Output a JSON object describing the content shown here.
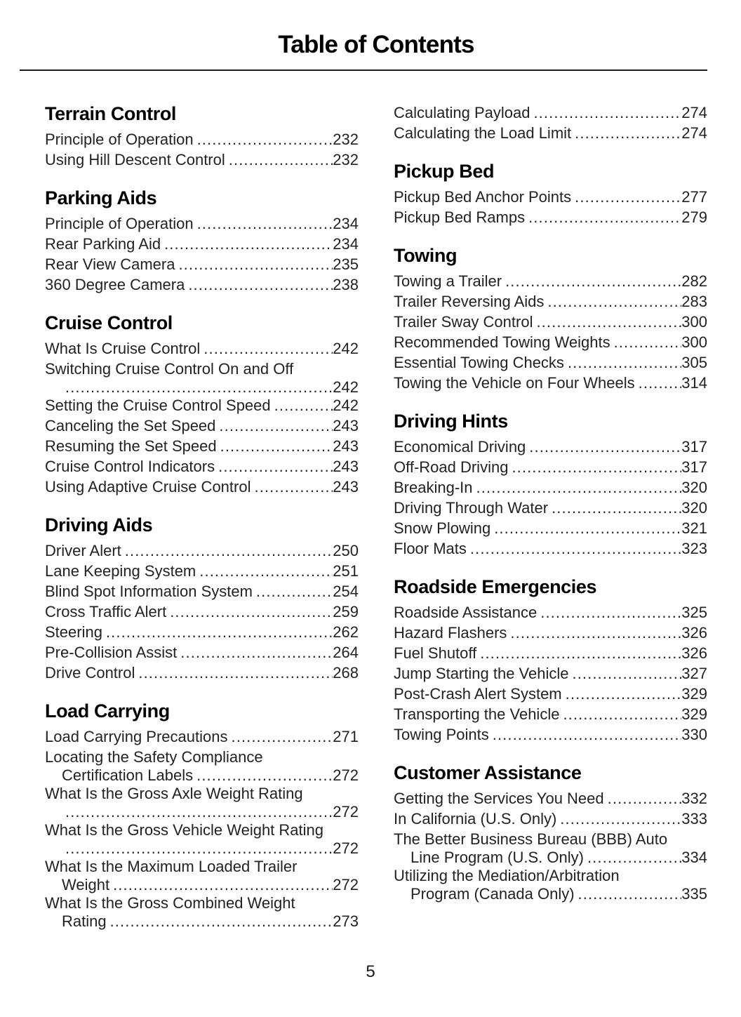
{
  "page": {
    "title": "Table of Contents",
    "page_number": "5"
  },
  "toc": {
    "columns": [
      {
        "sections": [
          {
            "title": "Terrain Control",
            "entries": [
              {
                "label": "Principle of Operation",
                "page": "232"
              },
              {
                "label": "Using Hill Descent Control",
                "page": "232"
              }
            ]
          },
          {
            "title": "Parking Aids",
            "entries": [
              {
                "label": "Principle of Operation",
                "page": "234"
              },
              {
                "label": "Rear Parking Aid",
                "page": "234"
              },
              {
                "label": "Rear View Camera",
                "page": "235"
              },
              {
                "label": "360 Degree Camera",
                "page": "238"
              }
            ]
          },
          {
            "title": "Cruise Control",
            "entries": [
              {
                "label": "What Is Cruise Control",
                "page": "242"
              },
              {
                "label": "Switching Cruise Control On and Off",
                "cont": "",
                "page": "242"
              },
              {
                "label": "Setting the Cruise Control Speed",
                "page": "242"
              },
              {
                "label": "Canceling the Set Speed",
                "page": "243"
              },
              {
                "label": "Resuming the Set Speed",
                "page": "243"
              },
              {
                "label": "Cruise Control Indicators",
                "page": "243"
              },
              {
                "label": "Using Adaptive Cruise Control",
                "page": "243"
              }
            ]
          },
          {
            "title": "Driving Aids",
            "entries": [
              {
                "label": "Driver Alert",
                "page": "250"
              },
              {
                "label": "Lane Keeping System",
                "page": "251"
              },
              {
                "label": "Blind Spot Information System",
                "page": "254"
              },
              {
                "label": "Cross Traffic Alert",
                "page": "259"
              },
              {
                "label": "Steering",
                "page": "262"
              },
              {
                "label": "Pre-Collision Assist",
                "page": "264"
              },
              {
                "label": "Drive Control",
                "page": "268"
              }
            ]
          },
          {
            "title": "Load Carrying",
            "entries": [
              {
                "label": "Load Carrying Precautions",
                "page": "271"
              },
              {
                "label": "Locating the Safety Compliance",
                "cont": "Certification Labels",
                "page": "272"
              },
              {
                "label": "What Is the Gross Axle Weight Rating",
                "cont": "",
                "page": "272"
              },
              {
                "label": "What Is the Gross Vehicle Weight Rating",
                "cont": "",
                "page": "272"
              },
              {
                "label": "What Is the Maximum Loaded Trailer",
                "cont": "Weight",
                "page": "272"
              },
              {
                "label": "What Is the Gross Combined Weight",
                "cont": "Rating",
                "page": "273"
              }
            ]
          }
        ]
      },
      {
        "sections": [
          {
            "title": "",
            "entries": [
              {
                "label": "Calculating Payload",
                "page": "274"
              },
              {
                "label": "Calculating the Load Limit",
                "page": "274"
              }
            ]
          },
          {
            "title": "Pickup Bed",
            "entries": [
              {
                "label": "Pickup Bed Anchor Points",
                "page": "277"
              },
              {
                "label": "Pickup Bed Ramps",
                "page": "279"
              }
            ]
          },
          {
            "title": "Towing",
            "entries": [
              {
                "label": "Towing a Trailer",
                "page": "282"
              },
              {
                "label": "Trailer Reversing Aids",
                "page": "283"
              },
              {
                "label": "Trailer Sway Control",
                "page": "300"
              },
              {
                "label": "Recommended Towing Weights",
                "page": "300"
              },
              {
                "label": "Essential Towing Checks",
                "page": "305"
              },
              {
                "label": "Towing the Vehicle on Four Wheels",
                "page": "314"
              }
            ]
          },
          {
            "title": "Driving Hints",
            "entries": [
              {
                "label": "Economical Driving",
                "page": "317"
              },
              {
                "label": "Off-Road Driving",
                "page": "317"
              },
              {
                "label": "Breaking-In",
                "page": "320"
              },
              {
                "label": "Driving Through Water",
                "page": "320"
              },
              {
                "label": "Snow Plowing",
                "page": "321"
              },
              {
                "label": "Floor Mats",
                "page": "323"
              }
            ]
          },
          {
            "title": "Roadside Emergencies",
            "entries": [
              {
                "label": "Roadside Assistance",
                "page": "325"
              },
              {
                "label": "Hazard Flashers",
                "page": "326"
              },
              {
                "label": "Fuel Shutoff",
                "page": "326"
              },
              {
                "label": "Jump Starting the Vehicle",
                "page": "327"
              },
              {
                "label": "Post-Crash Alert System",
                "page": "329"
              },
              {
                "label": "Transporting the Vehicle",
                "page": "329"
              },
              {
                "label": "Towing Points",
                "page": "330"
              }
            ]
          },
          {
            "title": "Customer Assistance",
            "entries": [
              {
                "label": "Getting the Services You Need",
                "page": "332"
              },
              {
                "label": "In California (U.S. Only)",
                "page": "333"
              },
              {
                "label": "The Better Business Bureau (BBB) Auto",
                "cont": "Line Program (U.S. Only)",
                "page": "334"
              },
              {
                "label": "Utilizing the Mediation/Arbitration",
                "cont": "Program (Canada Only)",
                "page": "335"
              }
            ]
          }
        ]
      }
    ]
  }
}
